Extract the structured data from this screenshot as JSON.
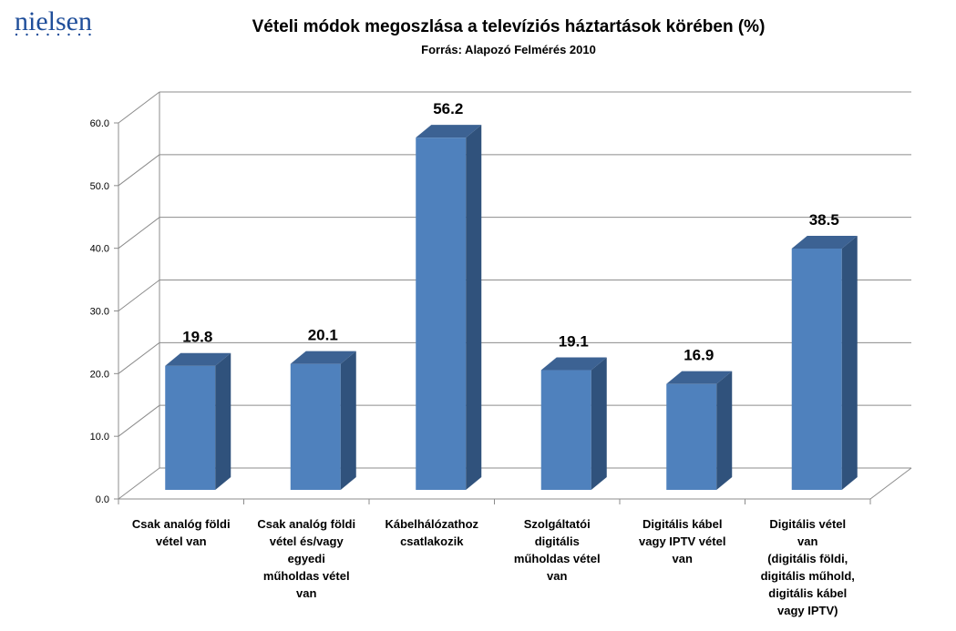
{
  "brand": {
    "name": "nielsen",
    "color": "#1f4e9a"
  },
  "chart_data": {
    "type": "bar",
    "style": "3d-column",
    "title": "Vételi módok megoszlása a televíziós háztartások körében (%)",
    "subtitle": "Forrás: Alapozó Felmérés 2010",
    "categories": [
      [
        "Csak analóg földi",
        "vétel van"
      ],
      [
        "Csak analóg földi",
        "vétel és/vagy",
        "egyedi",
        "műholdas vétel",
        "van"
      ],
      [
        "Kábelhálózathoz",
        "csatlakozik"
      ],
      [
        "Szolgáltatói",
        "digitális",
        "műholdas vétel",
        "van"
      ],
      [
        "Digitális kábel",
        "vagy IPTV vétel",
        "van"
      ],
      [
        "Digitális vétel",
        "van",
        "(digitális földi,",
        "digitális műhold,",
        "digitális kábel",
        "vagy IPTV)"
      ]
    ],
    "values": [
      19.8,
      20.1,
      56.2,
      19.1,
      16.9,
      38.5
    ],
    "data_labels": [
      "19.8",
      "20.1",
      "56.2",
      "19.1",
      "16.9",
      "38.5"
    ],
    "ylim": [
      0,
      60
    ],
    "yticks": [
      "0.0",
      "10.0",
      "20.0",
      "30.0",
      "40.0",
      "50.0",
      "60.0"
    ],
    "grid": true,
    "legend": "none",
    "colors": {
      "bar_front": "#4f81bd",
      "bar_side": "#30527c",
      "bar_top": "#3c6293",
      "grid": "#8c8c8c"
    }
  }
}
